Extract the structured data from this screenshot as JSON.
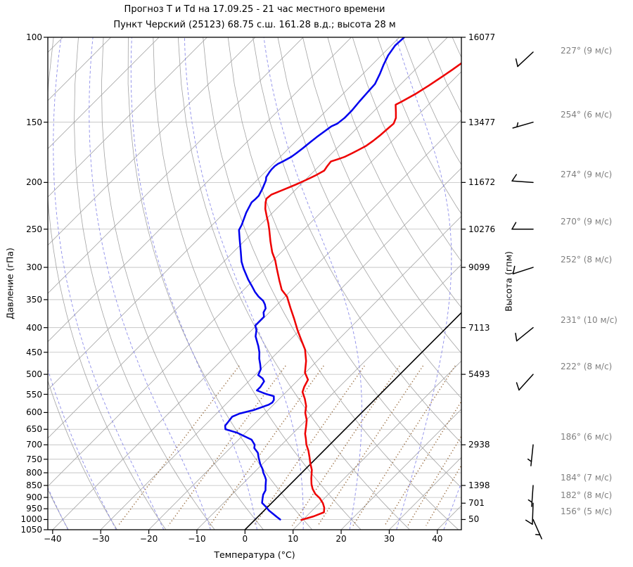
{
  "title": {
    "line1": "Прогноз Т и Td на 17.09.25 - 21 час местного времени",
    "line2": "Пункт Черский (25123) 68.75 с.ш. 161.28 в.д.; высота 28 м"
  },
  "axes": {
    "pressure": {
      "label": "Давление (гПа)",
      "ticks": [
        100,
        150,
        200,
        250,
        300,
        350,
        400,
        450,
        500,
        550,
        600,
        650,
        700,
        750,
        800,
        850,
        900,
        950,
        1000,
        1050
      ]
    },
    "temperature": {
      "label": "Температура (°C)",
      "ticks": [
        {
          "v": -40,
          "label": "−40"
        },
        {
          "v": -30,
          "label": "−30"
        },
        {
          "v": -20,
          "label": "−20"
        },
        {
          "v": -10,
          "label": "−10"
        },
        {
          "v": 0,
          "label": "0"
        },
        {
          "v": 10,
          "label": "10"
        },
        {
          "v": 20,
          "label": "20"
        },
        {
          "v": 30,
          "label": "30"
        },
        {
          "v": 40,
          "label": "40"
        }
      ]
    },
    "height": {
      "label": "Высота (гпм)",
      "ticks": [
        {
          "p": 100,
          "label": "16077"
        },
        {
          "p": 150,
          "label": "13477"
        },
        {
          "p": 200,
          "label": "11672"
        },
        {
          "p": 250,
          "label": "10276"
        },
        {
          "p": 300,
          "label": "9099"
        },
        {
          "p": 400,
          "label": "7113"
        },
        {
          "p": 500,
          "label": "5493"
        },
        {
          "p": 700,
          "label": "2938"
        },
        {
          "p": 850,
          "label": "1398"
        },
        {
          "p": 925,
          "label": "701"
        },
        {
          "p": 1000,
          "label": "50"
        }
      ]
    }
  },
  "chart_data": {
    "type": "line",
    "subtype": "skewt-logp",
    "xlabel": "Температура (°C)",
    "ylabel_left": "Давление (гПа)",
    "ylabel_right": "Высота (гпм)",
    "x_range": [
      -41,
      45
    ],
    "pressure_range": [
      100,
      1050
    ],
    "skew_deg_per_decade": 100,
    "series": [
      {
        "name": "temperature",
        "color": "#ee0000",
        "points": [
          [
            113,
            -51.7
          ],
          [
            117,
            -52.3
          ],
          [
            121,
            -53.0
          ],
          [
            126,
            -53.9
          ],
          [
            131,
            -54.9
          ],
          [
            136,
            -56.2
          ],
          [
            138,
            -56.8
          ],
          [
            143,
            -55.2
          ],
          [
            147,
            -54.0
          ],
          [
            151,
            -53.3
          ],
          [
            155,
            -53.5
          ],
          [
            160,
            -53.7
          ],
          [
            164,
            -54.0
          ],
          [
            168,
            -54.4
          ],
          [
            171,
            -55.1
          ],
          [
            174,
            -55.8
          ],
          [
            177,
            -56.6
          ],
          [
            179,
            -57.5
          ],
          [
            181,
            -58.5
          ],
          [
            185,
            -58.3
          ],
          [
            189,
            -58.0
          ],
          [
            193,
            -58.7
          ],
          [
            196,
            -59.4
          ],
          [
            199,
            -60.2
          ],
          [
            202,
            -61.0
          ],
          [
            205,
            -61.9
          ],
          [
            208,
            -62.8
          ],
          [
            212,
            -64.0
          ],
          [
            216,
            -64.2
          ],
          [
            220,
            -63.6
          ],
          [
            227,
            -62.3
          ],
          [
            235,
            -60.5
          ],
          [
            243,
            -58.7
          ],
          [
            251,
            -57.1
          ],
          [
            265,
            -54.5
          ],
          [
            279,
            -51.9
          ],
          [
            290,
            -49.6
          ],
          [
            302,
            -47.5
          ],
          [
            319,
            -44.6
          ],
          [
            334,
            -42.1
          ],
          [
            345,
            -39.6
          ],
          [
            365,
            -36.4
          ],
          [
            383,
            -33.6
          ],
          [
            406,
            -30.3
          ],
          [
            424,
            -27.7
          ],
          [
            444,
            -24.9
          ],
          [
            469,
            -22.3
          ],
          [
            496,
            -20.1
          ],
          [
            513,
            -18.0
          ],
          [
            531,
            -17.3
          ],
          [
            544,
            -16.6
          ],
          [
            562,
            -14.7
          ],
          [
            582,
            -12.9
          ],
          [
            601,
            -11.7
          ],
          [
            622,
            -9.9
          ],
          [
            643,
            -8.6
          ],
          [
            664,
            -7.4
          ],
          [
            680,
            -6.2
          ],
          [
            699,
            -4.9
          ],
          [
            720,
            -3.2
          ],
          [
            743,
            -1.6
          ],
          [
            766,
            -0.1
          ],
          [
            789,
            1.5
          ],
          [
            821,
            3.1
          ],
          [
            845,
            4.4
          ],
          [
            864,
            5.6
          ],
          [
            885,
            7.2
          ],
          [
            903,
            9.0
          ],
          [
            925,
            10.7
          ],
          [
            945,
            11.9
          ],
          [
            966,
            12.8
          ],
          [
            985,
            11.5
          ],
          [
            1002,
            9.7
          ]
        ]
      },
      {
        "name": "dewpoint",
        "color": "#0000ee",
        "points": [
          [
            100,
            -69.0
          ],
          [
            104,
            -69.2
          ],
          [
            109,
            -68.6
          ],
          [
            114,
            -67.6
          ],
          [
            119,
            -66.5
          ],
          [
            125,
            -65.4
          ],
          [
            131,
            -65.2
          ],
          [
            136,
            -65.0
          ],
          [
            142,
            -64.7
          ],
          [
            147,
            -64.7
          ],
          [
            151,
            -65.0
          ],
          [
            153,
            -65.7
          ],
          [
            157,
            -66.1
          ],
          [
            161,
            -66.5
          ],
          [
            165,
            -66.8
          ],
          [
            170,
            -67.1
          ],
          [
            174,
            -67.4
          ],
          [
            177,
            -67.7
          ],
          [
            181,
            -68.5
          ],
          [
            183,
            -69.0
          ],
          [
            185,
            -69.2
          ],
          [
            188,
            -69.2
          ],
          [
            190,
            -69.1
          ],
          [
            195,
            -68.7
          ],
          [
            198,
            -68.1
          ],
          [
            206,
            -67.1
          ],
          [
            213,
            -66.4
          ],
          [
            217,
            -66.4
          ],
          [
            220,
            -66.5
          ],
          [
            231,
            -65.5
          ],
          [
            245,
            -63.9
          ],
          [
            251,
            -63.4
          ],
          [
            262,
            -61.4
          ],
          [
            278,
            -58.6
          ],
          [
            292,
            -56.3
          ],
          [
            302,
            -54.4
          ],
          [
            318,
            -51.2
          ],
          [
            328,
            -49.1
          ],
          [
            337,
            -47.3
          ],
          [
            345,
            -45.5
          ],
          [
            352,
            -43.7
          ],
          [
            358,
            -42.6
          ],
          [
            365,
            -41.6
          ],
          [
            372,
            -41.2
          ],
          [
            380,
            -40.2
          ],
          [
            396,
            -40.2
          ],
          [
            405,
            -39.0
          ],
          [
            417,
            -37.9
          ],
          [
            437,
            -35.3
          ],
          [
            450,
            -33.8
          ],
          [
            464,
            -32.5
          ],
          [
            476,
            -31.2
          ],
          [
            488,
            -30.0
          ],
          [
            502,
            -29.3
          ],
          [
            510,
            -27.7
          ],
          [
            517,
            -26.8
          ],
          [
            531,
            -26.4
          ],
          [
            540,
            -26.4
          ],
          [
            549,
            -23.8
          ],
          [
            555,
            -21.7
          ],
          [
            565,
            -20.9
          ],
          [
            572,
            -20.7
          ],
          [
            578,
            -21.0
          ],
          [
            593,
            -23.0
          ],
          [
            603,
            -25.2
          ],
          [
            612,
            -26.1
          ],
          [
            625,
            -25.9
          ],
          [
            639,
            -25.7
          ],
          [
            650,
            -24.9
          ],
          [
            661,
            -21.7
          ],
          [
            683,
            -17.3
          ],
          [
            700,
            -15.6
          ],
          [
            711,
            -15.0
          ],
          [
            727,
            -13.3
          ],
          [
            743,
            -12.2
          ],
          [
            768,
            -10.4
          ],
          [
            785,
            -9.0
          ],
          [
            800,
            -8.0
          ],
          [
            814,
            -6.9
          ],
          [
            827,
            -6.0
          ],
          [
            850,
            -4.9
          ],
          [
            870,
            -3.9
          ],
          [
            888,
            -3.5
          ],
          [
            905,
            -2.8
          ],
          [
            924,
            -2.0
          ],
          [
            940,
            -0.5
          ],
          [
            958,
            1.0
          ],
          [
            972,
            2.4
          ],
          [
            988,
            4.0
          ],
          [
            1000,
            5.2
          ]
        ]
      }
    ],
    "background": {
      "isobars": [
        150,
        200,
        250,
        300,
        350,
        400,
        450,
        500,
        550,
        600,
        650,
        700,
        750,
        800,
        850,
        900,
        950,
        1000
      ],
      "isotherm_min": -140,
      "isotherm_max": 40,
      "isotherm_step": 10,
      "highlight_isotherm": 0,
      "dry_adiabats_theta_c": [
        -40,
        -30,
        -20,
        -10,
        0,
        10,
        20,
        30,
        40,
        50,
        60,
        70,
        80,
        90,
        100,
        110,
        120,
        130,
        140,
        150
      ],
      "moist_adiabats_t0_c": [
        -40,
        -30,
        -20,
        -10,
        0,
        10,
        20,
        30,
        40
      ],
      "mixing_ratios_g_kg": [
        0.4,
        1,
        2,
        4,
        7,
        10,
        16,
        24,
        32,
        40
      ],
      "mixing_ratio_p_top": 480,
      "colors": {
        "isobar": "#bdbdbd",
        "isotherm": "#a3a3a3",
        "dry_adiabat": "#a3a3a3",
        "moist_adiabat": "#8181e8",
        "mixing_ratio": "#96693c",
        "highlight_isotherm": "#000000",
        "frame": "#000000",
        "wind_label": "#808080"
      }
    }
  },
  "winds": [
    {
      "p": 100,
      "dir": 227,
      "speed": 9,
      "label": "227° (9 м/с)"
    },
    {
      "p": 150,
      "dir": 254,
      "speed": 6,
      "label": "254° (6 м/с)"
    },
    {
      "p": 200,
      "dir": 274,
      "speed": 9,
      "label": "274° (9 м/с)"
    },
    {
      "p": 250,
      "dir": 270,
      "speed": 9,
      "label": "270° (9 м/с)"
    },
    {
      "p": 300,
      "dir": 252,
      "speed": 8,
      "label": "252° (8 м/с)"
    },
    {
      "p": 400,
      "dir": 231,
      "speed": 10,
      "label": "231° (10 м/с)"
    },
    {
      "p": 500,
      "dir": 222,
      "speed": 8,
      "label": "222° (8 м/с)"
    },
    {
      "p": 700,
      "dir": 186,
      "speed": 6,
      "label": "186° (6 м/с)"
    },
    {
      "p": 850,
      "dir": 184,
      "speed": 7,
      "label": "184° (7 м/с)"
    },
    {
      "p": 925,
      "dir": 182,
      "speed": 8,
      "label": "182° (8 м/с)"
    },
    {
      "p": 1000,
      "dir": 156,
      "speed": 5,
      "label": "156° (5 м/с)"
    }
  ]
}
